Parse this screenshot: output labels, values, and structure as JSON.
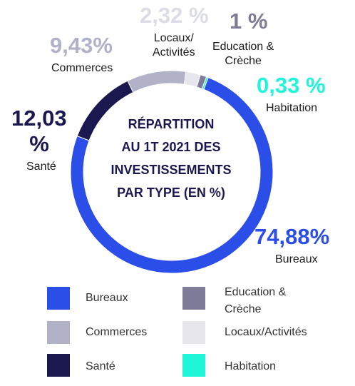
{
  "chart_data": {
    "type": "pie",
    "style": "donut",
    "title_lines": [
      "RÉPARTITION",
      "AU 1T 2021 DES",
      "INVESTISSEMENTS",
      "PAR TYPE (EN %)"
    ],
    "slices": [
      {
        "name": "Bureaux",
        "value": 74.88,
        "value_label": "74,88%",
        "color": "#2b4de8"
      },
      {
        "name": "Santé",
        "value": 12.03,
        "value_label_lines": [
          "12,03",
          "%"
        ],
        "color": "#1b1850"
      },
      {
        "name": "Commerces",
        "value": 9.43,
        "value_label": "9,43%",
        "color": "#b1b1c8"
      },
      {
        "name": "Locaux/Activités",
        "value": 2.32,
        "value_label": "2,32 %",
        "label_lines": [
          "Locaux/",
          "Activités"
        ],
        "color": "#e6e6ec"
      },
      {
        "name": "Education & Crèche",
        "value": 1,
        "value_label": "1 %",
        "label_lines": [
          "Education &",
          "Crèche"
        ],
        "color": "#7e7b98"
      },
      {
        "name": "Habitation",
        "value": 0.33,
        "value_label": "0,33 %",
        "color": "#1ff5d8"
      }
    ],
    "legend": [
      {
        "label_lines": [
          "Bureaux"
        ],
        "color": "#2b4de8"
      },
      {
        "label_lines": [
          "Education &",
          "Crèche"
        ],
        "color": "#7e7b98"
      },
      {
        "label_lines": [
          "Commerces"
        ],
        "color": "#b1b1c8"
      },
      {
        "label_lines": [
          "Locaux/Activités"
        ],
        "color": "#e6e6ec"
      },
      {
        "label_lines": [
          "Santé"
        ],
        "color": "#1b1850"
      },
      {
        "label_lines": [
          "Habitation"
        ],
        "color": "#1ff5d8"
      }
    ],
    "legend_placement": "bottom"
  }
}
